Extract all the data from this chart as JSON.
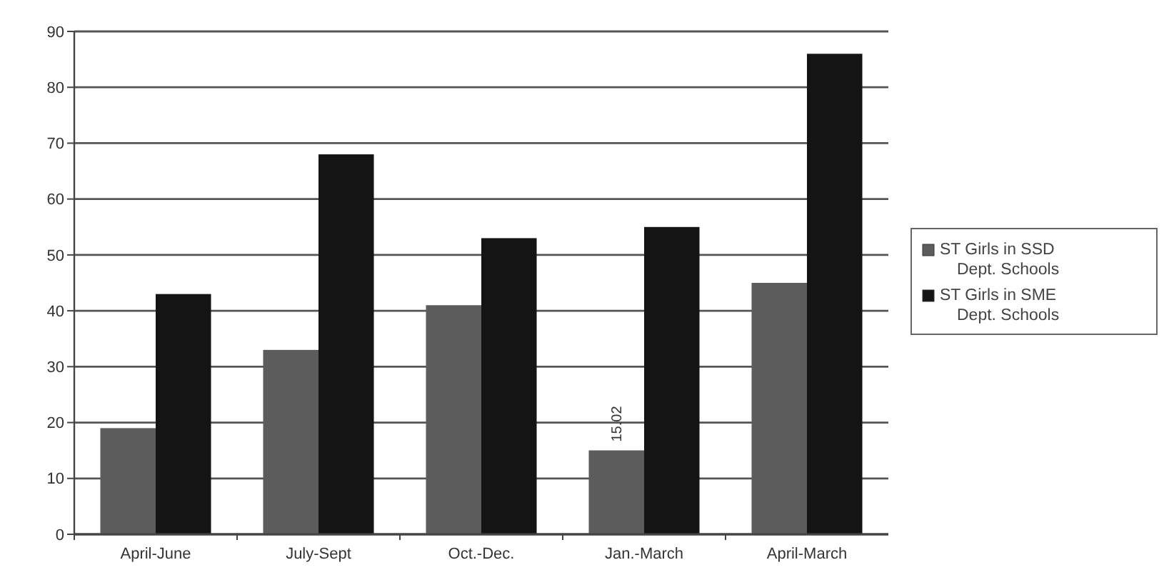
{
  "chart_data": {
    "type": "bar",
    "categories": [
      "April-June",
      "July-Sept",
      "Oct.-Dec.",
      "Jan.-March",
      "April-March"
    ],
    "series": [
      {
        "name": "ST Girls in SSD Dept. Schools",
        "color": "#5c5c5c",
        "values": [
          19,
          33,
          41,
          15.02,
          45
        ],
        "value_labels": [
          null,
          null,
          null,
          "15.02",
          null
        ]
      },
      {
        "name": "ST Girls in SME Dept. Schools",
        "color": "#141414",
        "values": [
          43,
          68,
          53,
          55,
          86
        ]
      }
    ],
    "ylim": [
      0,
      90
    ],
    "yticks": [
      0,
      10,
      20,
      30,
      40,
      50,
      60,
      70,
      80,
      90
    ],
    "grid": "y",
    "legend": "right"
  }
}
